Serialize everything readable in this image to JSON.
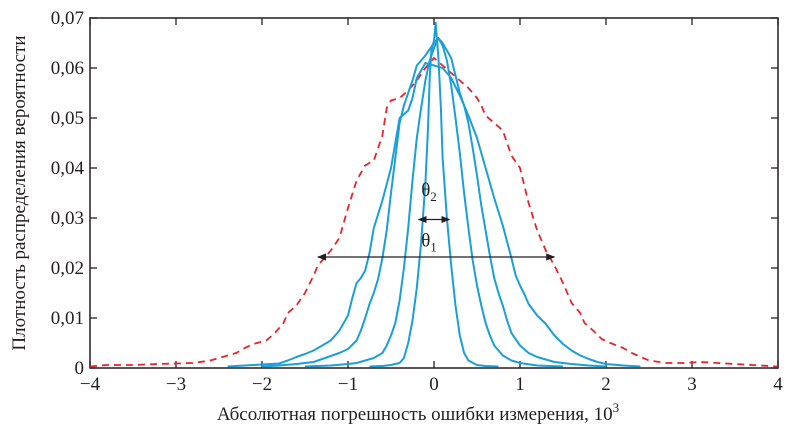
{
  "chart_data": {
    "type": "line",
    "title": "",
    "xlabel": "Абсолютная погрешность ошибки измерения, 10",
    "xlabel_sup": "3",
    "ylabel": "Плотность распределения вероятности",
    "xlim": [
      -4,
      4
    ],
    "ylim": [
      0,
      0.07
    ],
    "x_ticks": [
      -4,
      -3,
      -2,
      -1,
      0,
      1,
      2,
      3,
      4
    ],
    "x_tick_labels": [
      "−4",
      "−3",
      "−2",
      "−1",
      "0",
      "1",
      "2",
      "3",
      "4"
    ],
    "y_ticks": [
      0,
      0.01,
      0.02,
      0.03,
      0.04,
      0.05,
      0.06,
      0.07
    ],
    "y_tick_labels": [
      "0",
      "0,01",
      "0,02",
      "0,03",
      "0,04",
      "0,05",
      "0,06",
      "0,07"
    ],
    "grid": false,
    "legend": "none",
    "colors": {
      "dashed": "#e8232a",
      "solid": "#1a9fd8",
      "text": "#231f20"
    },
    "series": [
      {
        "style": "dashed",
        "points": [
          [
            -4.0,
            0.0003
          ],
          [
            -3.8,
            0.0006
          ],
          [
            -3.5,
            0.0006
          ],
          [
            -3.2,
            0.0008
          ],
          [
            -3.0,
            0.0009
          ],
          [
            -2.8,
            0.001
          ],
          [
            -2.6,
            0.0015
          ],
          [
            -2.5,
            0.002
          ],
          [
            -2.3,
            0.003
          ],
          [
            -2.2,
            0.004
          ],
          [
            -2.1,
            0.0048
          ],
          [
            -1.95,
            0.0055
          ],
          [
            -1.85,
            0.007
          ],
          [
            -1.75,
            0.009
          ],
          [
            -1.7,
            0.011
          ],
          [
            -1.6,
            0.0125
          ],
          [
            -1.5,
            0.015
          ],
          [
            -1.4,
            0.0185
          ],
          [
            -1.35,
            0.0205
          ],
          [
            -1.3,
            0.0215
          ],
          [
            -1.2,
            0.0235
          ],
          [
            -1.1,
            0.026
          ],
          [
            -1.05,
            0.029
          ],
          [
            -1.0,
            0.032
          ],
          [
            -0.9,
            0.0375
          ],
          [
            -0.85,
            0.039
          ],
          [
            -0.8,
            0.0405
          ],
          [
            -0.7,
            0.0415
          ],
          [
            -0.65,
            0.044
          ],
          [
            -0.6,
            0.0465
          ],
          [
            -0.55,
            0.052
          ],
          [
            -0.5,
            0.0535
          ],
          [
            -0.4,
            0.054
          ],
          [
            -0.3,
            0.0555
          ],
          [
            -0.2,
            0.0575
          ],
          [
            -0.1,
            0.06
          ],
          [
            0.0,
            0.062
          ],
          [
            0.1,
            0.0605
          ],
          [
            0.2,
            0.059
          ],
          [
            0.3,
            0.0575
          ],
          [
            0.4,
            0.056
          ],
          [
            0.5,
            0.054
          ],
          [
            0.55,
            0.0525
          ],
          [
            0.6,
            0.0505
          ],
          [
            0.7,
            0.049
          ],
          [
            0.8,
            0.0475
          ],
          [
            0.85,
            0.045
          ],
          [
            0.9,
            0.0425
          ],
          [
            1.0,
            0.04
          ],
          [
            1.05,
            0.0365
          ],
          [
            1.1,
            0.033
          ],
          [
            1.2,
            0.0275
          ],
          [
            1.3,
            0.0235
          ],
          [
            1.4,
            0.0205
          ],
          [
            1.5,
            0.017
          ],
          [
            1.55,
            0.015
          ],
          [
            1.6,
            0.013
          ],
          [
            1.7,
            0.011
          ],
          [
            1.75,
            0.009
          ],
          [
            1.85,
            0.0075
          ],
          [
            1.95,
            0.0058
          ],
          [
            2.05,
            0.005
          ],
          [
            2.2,
            0.004
          ],
          [
            2.3,
            0.003
          ],
          [
            2.5,
            0.0015
          ],
          [
            2.7,
            0.001
          ],
          [
            2.9,
            0.001
          ],
          [
            3.1,
            0.0012
          ],
          [
            3.3,
            0.001
          ],
          [
            3.5,
            0.0008
          ],
          [
            3.7,
            0.0006
          ],
          [
            4.0,
            0.0003
          ]
        ]
      },
      {
        "style": "solid",
        "points": [
          [
            -2.4,
            0.0003
          ],
          [
            -2.2,
            0.0005
          ],
          [
            -2.0,
            0.0007
          ],
          [
            -1.8,
            0.0009
          ],
          [
            -1.7,
            0.0015
          ],
          [
            -1.6,
            0.0022
          ],
          [
            -1.5,
            0.0028
          ],
          [
            -1.4,
            0.0035
          ],
          [
            -1.3,
            0.0045
          ],
          [
            -1.2,
            0.0055
          ],
          [
            -1.1,
            0.0075
          ],
          [
            -1.0,
            0.0105
          ],
          [
            -0.95,
            0.014
          ],
          [
            -0.9,
            0.017
          ],
          [
            -0.85,
            0.018
          ],
          [
            -0.8,
            0.0195
          ],
          [
            -0.75,
            0.023
          ],
          [
            -0.7,
            0.028
          ],
          [
            -0.6,
            0.0335
          ],
          [
            -0.5,
            0.04
          ],
          [
            -0.45,
            0.045
          ],
          [
            -0.4,
            0.05
          ],
          [
            -0.3,
            0.0515
          ],
          [
            -0.25,
            0.054
          ],
          [
            -0.2,
            0.058
          ],
          [
            -0.1,
            0.061
          ],
          [
            0.0,
            0.0605
          ],
          [
            0.1,
            0.06
          ],
          [
            0.2,
            0.058
          ],
          [
            0.3,
            0.0545
          ],
          [
            0.4,
            0.0505
          ],
          [
            0.5,
            0.046
          ],
          [
            0.6,
            0.04
          ],
          [
            0.7,
            0.034
          ],
          [
            0.8,
            0.0285
          ],
          [
            0.9,
            0.022
          ],
          [
            0.95,
            0.0185
          ],
          [
            1.0,
            0.0165
          ],
          [
            1.05,
            0.0148
          ],
          [
            1.1,
            0.0128
          ],
          [
            1.2,
            0.0105
          ],
          [
            1.3,
            0.0088
          ],
          [
            1.4,
            0.0065
          ],
          [
            1.5,
            0.0048
          ],
          [
            1.6,
            0.0035
          ],
          [
            1.7,
            0.0025
          ],
          [
            1.8,
            0.0018
          ],
          [
            1.9,
            0.0012
          ],
          [
            2.0,
            0.0008
          ],
          [
            2.2,
            0.0005
          ],
          [
            2.4,
            0.0003
          ]
        ]
      },
      {
        "style": "solid",
        "points": [
          [
            -2.0,
            0.0003
          ],
          [
            -1.8,
            0.0005
          ],
          [
            -1.6,
            0.0008
          ],
          [
            -1.4,
            0.0012
          ],
          [
            -1.3,
            0.0018
          ],
          [
            -1.2,
            0.0024
          ],
          [
            -1.1,
            0.003
          ],
          [
            -1.0,
            0.0038
          ],
          [
            -0.9,
            0.0055
          ],
          [
            -0.85,
            0.0075
          ],
          [
            -0.8,
            0.01
          ],
          [
            -0.75,
            0.0128
          ],
          [
            -0.7,
            0.015
          ],
          [
            -0.65,
            0.0178
          ],
          [
            -0.6,
            0.022
          ],
          [
            -0.55,
            0.0275
          ],
          [
            -0.5,
            0.035
          ],
          [
            -0.45,
            0.042
          ],
          [
            -0.4,
            0.049
          ],
          [
            -0.35,
            0.0525
          ],
          [
            -0.3,
            0.055
          ],
          [
            -0.25,
            0.0575
          ],
          [
            -0.2,
            0.0605
          ],
          [
            -0.1,
            0.0625
          ],
          [
            0.0,
            0.065
          ],
          [
            0.05,
            0.066
          ],
          [
            0.1,
            0.065
          ],
          [
            0.2,
            0.062
          ],
          [
            0.25,
            0.0585
          ],
          [
            0.3,
            0.055
          ],
          [
            0.35,
            0.0525
          ],
          [
            0.4,
            0.049
          ],
          [
            0.45,
            0.044
          ],
          [
            0.5,
            0.0385
          ],
          [
            0.55,
            0.0325
          ],
          [
            0.6,
            0.0275
          ],
          [
            0.65,
            0.0225
          ],
          [
            0.7,
            0.018
          ],
          [
            0.75,
            0.015
          ],
          [
            0.8,
            0.0125
          ],
          [
            0.85,
            0.0095
          ],
          [
            0.9,
            0.007
          ],
          [
            1.0,
            0.0045
          ],
          [
            1.1,
            0.003
          ],
          [
            1.2,
            0.0022
          ],
          [
            1.4,
            0.0012
          ],
          [
            1.6,
            0.0008
          ],
          [
            1.8,
            0.0005
          ],
          [
            2.0,
            0.0003
          ]
        ]
      },
      {
        "style": "solid",
        "points": [
          [
            -1.5,
            0.0003
          ],
          [
            -1.2,
            0.0005
          ],
          [
            -1.0,
            0.0008
          ],
          [
            -0.9,
            0.001
          ],
          [
            -0.8,
            0.0015
          ],
          [
            -0.7,
            0.002
          ],
          [
            -0.6,
            0.003
          ],
          [
            -0.55,
            0.0045
          ],
          [
            -0.5,
            0.0065
          ],
          [
            -0.45,
            0.009
          ],
          [
            -0.4,
            0.0135
          ],
          [
            -0.35,
            0.02
          ],
          [
            -0.3,
            0.028
          ],
          [
            -0.25,
            0.0375
          ],
          [
            -0.2,
            0.046
          ],
          [
            -0.15,
            0.052
          ],
          [
            -0.1,
            0.0575
          ],
          [
            -0.05,
            0.0615
          ],
          [
            0.0,
            0.064
          ],
          [
            0.05,
            0.066
          ],
          [
            0.1,
            0.0645
          ],
          [
            0.15,
            0.0615
          ],
          [
            0.2,
            0.0565
          ],
          [
            0.25,
            0.05
          ],
          [
            0.3,
            0.043
          ],
          [
            0.35,
            0.035
          ],
          [
            0.4,
            0.028
          ],
          [
            0.45,
            0.0215
          ],
          [
            0.5,
            0.0165
          ],
          [
            0.55,
            0.0125
          ],
          [
            0.6,
            0.009
          ],
          [
            0.65,
            0.0065
          ],
          [
            0.7,
            0.0045
          ],
          [
            0.8,
            0.0025
          ],
          [
            0.9,
            0.0015
          ],
          [
            1.0,
            0.001
          ],
          [
            1.2,
            0.0005
          ],
          [
            1.5,
            0.0003
          ]
        ]
      },
      {
        "style": "solid",
        "points": [
          [
            -0.75,
            0.0003
          ],
          [
            -0.6,
            0.0004
          ],
          [
            -0.5,
            0.0006
          ],
          [
            -0.4,
            0.001
          ],
          [
            -0.35,
            0.002
          ],
          [
            -0.3,
            0.005
          ],
          [
            -0.25,
            0.0095
          ],
          [
            -0.2,
            0.016
          ],
          [
            -0.15,
            0.025
          ],
          [
            -0.1,
            0.037
          ],
          [
            -0.07,
            0.048
          ],
          [
            -0.05,
            0.058
          ],
          [
            -0.03,
            0.0635
          ],
          [
            0.0,
            0.0655
          ],
          [
            0.02,
            0.069
          ],
          [
            0.03,
            0.0665
          ],
          [
            0.05,
            0.0625
          ],
          [
            0.08,
            0.052
          ],
          [
            0.1,
            0.042
          ],
          [
            0.15,
            0.03
          ],
          [
            0.2,
            0.0205
          ],
          [
            0.25,
            0.0125
          ],
          [
            0.3,
            0.0065
          ],
          [
            0.35,
            0.003
          ],
          [
            0.4,
            0.0015
          ],
          [
            0.5,
            0.0006
          ],
          [
            0.6,
            0.0004
          ],
          [
            0.75,
            0.0003
          ]
        ]
      }
    ],
    "annotations": [
      {
        "id": "theta2",
        "label": "θ",
        "sub": "2",
        "x": 0.0,
        "y": 0.0344,
        "arrow_from": -0.18,
        "arrow_to": 0.18,
        "arrow_y": 0.0297
      },
      {
        "id": "theta1",
        "label": "θ",
        "sub": "1",
        "x": 0.0,
        "y": 0.0243,
        "arrow_from": -1.35,
        "arrow_to": 1.4,
        "arrow_y": 0.0222
      }
    ]
  }
}
